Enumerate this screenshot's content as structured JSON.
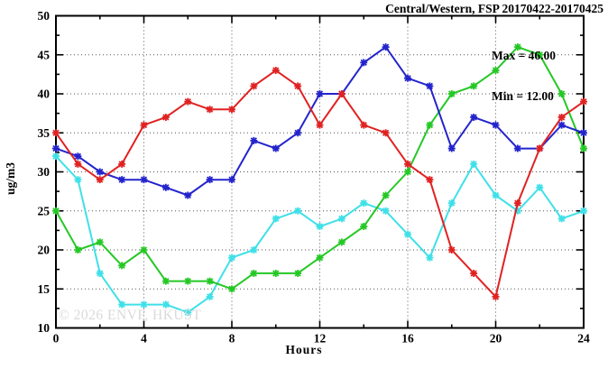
{
  "title": "Central/Western, FSP 20170422-20170425",
  "annotation": {
    "max_label": "Max = 46.00",
    "min_label": "Min = 12.00"
  },
  "watermark": "© 2026 ENVF, HKUST",
  "chart_data": {
    "type": "line",
    "title": "Central/Western, FSP 20170422-20170425",
    "xlabel": "Hours",
    "ylabel": "ug/m3",
    "xlim": [
      0,
      24
    ],
    "ylim": [
      10,
      50
    ],
    "x_tick_labels": [
      "0",
      "4",
      "8",
      "12",
      "16",
      "20",
      "24"
    ],
    "x_major_ticks": [
      0,
      4,
      8,
      12,
      16,
      20,
      24
    ],
    "x_minor_step": 2,
    "y_tick_labels": [
      "10",
      "15",
      "20",
      "25",
      "30",
      "35",
      "40",
      "45",
      "50"
    ],
    "y_major_ticks": [
      10,
      15,
      20,
      25,
      30,
      35,
      40,
      45,
      50
    ],
    "y_minor_step": 2.5,
    "grid": "dotted",
    "legend": "none",
    "max": 46.0,
    "min": 12.0,
    "x": [
      0,
      1,
      2,
      3,
      4,
      5,
      6,
      7,
      8,
      9,
      10,
      11,
      12,
      13,
      14,
      15,
      16,
      17,
      18,
      19,
      20,
      21,
      22,
      23,
      24
    ],
    "series": [
      {
        "name": "cyan-series",
        "color": "#3fe0e8",
        "values": [
          32,
          29,
          17,
          13,
          13,
          13,
          12,
          14,
          19,
          20,
          24,
          25,
          23,
          24,
          26,
          25,
          22,
          19,
          26,
          31,
          27,
          25,
          28,
          24,
          25
        ]
      },
      {
        "name": "green-series",
        "color": "#25c825",
        "values": [
          25,
          20,
          21,
          18,
          20,
          16,
          16,
          16,
          15,
          17,
          17,
          17,
          19,
          21,
          23,
          27,
          30,
          36,
          40,
          41,
          43,
          46,
          45,
          40,
          33
        ]
      },
      {
        "name": "blue-series",
        "color": "#2424cd",
        "values": [
          33,
          32,
          30,
          29,
          29,
          28,
          27,
          29,
          29,
          34,
          33,
          35,
          40,
          40,
          44,
          46,
          42,
          41,
          33,
          37,
          36,
          33,
          33,
          36,
          35
        ]
      },
      {
        "name": "red-series",
        "color": "#e02222",
        "values": [
          35,
          31,
          29,
          31,
          36,
          37,
          39,
          38,
          38,
          41,
          43,
          41,
          36,
          40,
          36,
          35,
          31,
          29,
          20,
          17,
          14,
          26,
          33,
          37,
          39
        ]
      }
    ]
  }
}
